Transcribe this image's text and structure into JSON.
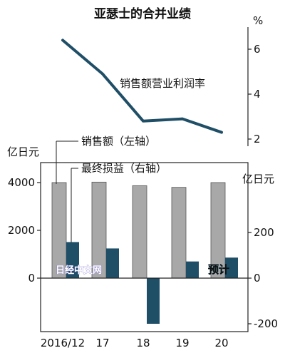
{
  "chart_data": {
    "type": "bar",
    "title": "亚瑟士的合并业绩",
    "categories": [
      "2016/12",
      "17",
      "18",
      "19",
      "20"
    ],
    "series": [
      {
        "name": "销售额（左轴）",
        "type": "bar",
        "axis": "left",
        "color": "#a8a8a8",
        "values": [
          4000,
          4020,
          3870,
          3800,
          4000
        ]
      },
      {
        "name": "最终损益（右轴）",
        "type": "bar",
        "axis": "right",
        "color": "#1f4e67",
        "values": [
          158,
          130,
          -200,
          73,
          90
        ]
      },
      {
        "name": "销售额营业利润率",
        "type": "line",
        "axis": "top",
        "color": "#1f4e67",
        "values": [
          6.4,
          4.9,
          2.8,
          2.9,
          2.3
        ]
      }
    ],
    "left_axis": {
      "label": "亿日元",
      "ylim": [
        -2000,
        4800
      ],
      "ticks": [
        4000,
        2000,
        0
      ]
    },
    "right_axis": {
      "label": "亿日元",
      "ylim": [
        -200,
        480
      ],
      "ticks": [
        200,
        0,
        -200
      ]
    },
    "top_axis": {
      "label": "%",
      "ticks": [
        6,
        4,
        2
      ]
    },
    "annotations": [
      "预计"
    ],
    "watermark": "日经中文网",
    "grid": false
  }
}
